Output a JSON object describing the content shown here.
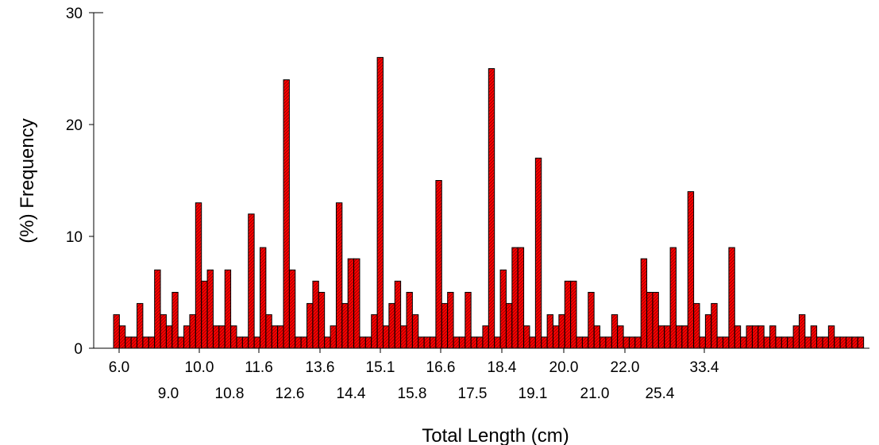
{
  "chart_data": {
    "type": "bar",
    "xlabel": "Total Length (cm)",
    "ylabel": "(%) Frequency",
    "ylim": [
      0,
      30
    ],
    "yticks": [
      0,
      10,
      20,
      30
    ],
    "ytick_labels": [
      "0",
      "10",
      "20",
      "30"
    ],
    "bar_color": "#ff0000",
    "hatch_color": "#8b0000",
    "grid": false,
    "legend": "none",
    "xtick_labels_row1": [
      "6.0",
      "10.0",
      "11.6",
      "13.6",
      "15.1",
      "16.6",
      "18.4",
      "20.0",
      "22.0",
      "33.4"
    ],
    "xtick_labels_row2": [
      "9.0",
      "10.8",
      "12.6",
      "14.4",
      "15.8",
      "17.5",
      "19.1",
      "21.0",
      "25.4"
    ],
    "values": [
      3,
      2,
      1,
      1,
      4,
      1,
      1,
      7,
      3,
      2,
      5,
      1,
      2,
      3,
      13,
      6,
      7,
      2,
      2,
      7,
      2,
      1,
      1,
      12,
      1,
      9,
      3,
      2,
      2,
      24,
      7,
      1,
      1,
      4,
      6,
      5,
      1,
      2,
      13,
      4,
      8,
      8,
      1,
      1,
      3,
      26,
      2,
      4,
      6,
      2,
      5,
      3,
      1,
      1,
      1,
      15,
      4,
      5,
      1,
      1,
      5,
      1,
      1,
      2,
      25,
      1,
      7,
      4,
      9,
      9,
      2,
      1,
      17,
      1,
      3,
      2,
      3,
      6,
      6,
      1,
      1,
      5,
      2,
      1,
      1,
      3,
      2,
      1,
      1,
      1,
      8,
      5,
      5,
      2,
      2,
      9,
      2,
      2,
      14,
      4,
      1,
      3,
      4,
      1,
      1,
      9,
      2,
      1,
      2,
      2,
      2,
      1,
      2,
      1,
      1,
      1,
      2,
      3,
      1,
      2,
      1,
      1,
      2,
      1,
      1,
      1,
      1,
      1
    ]
  }
}
